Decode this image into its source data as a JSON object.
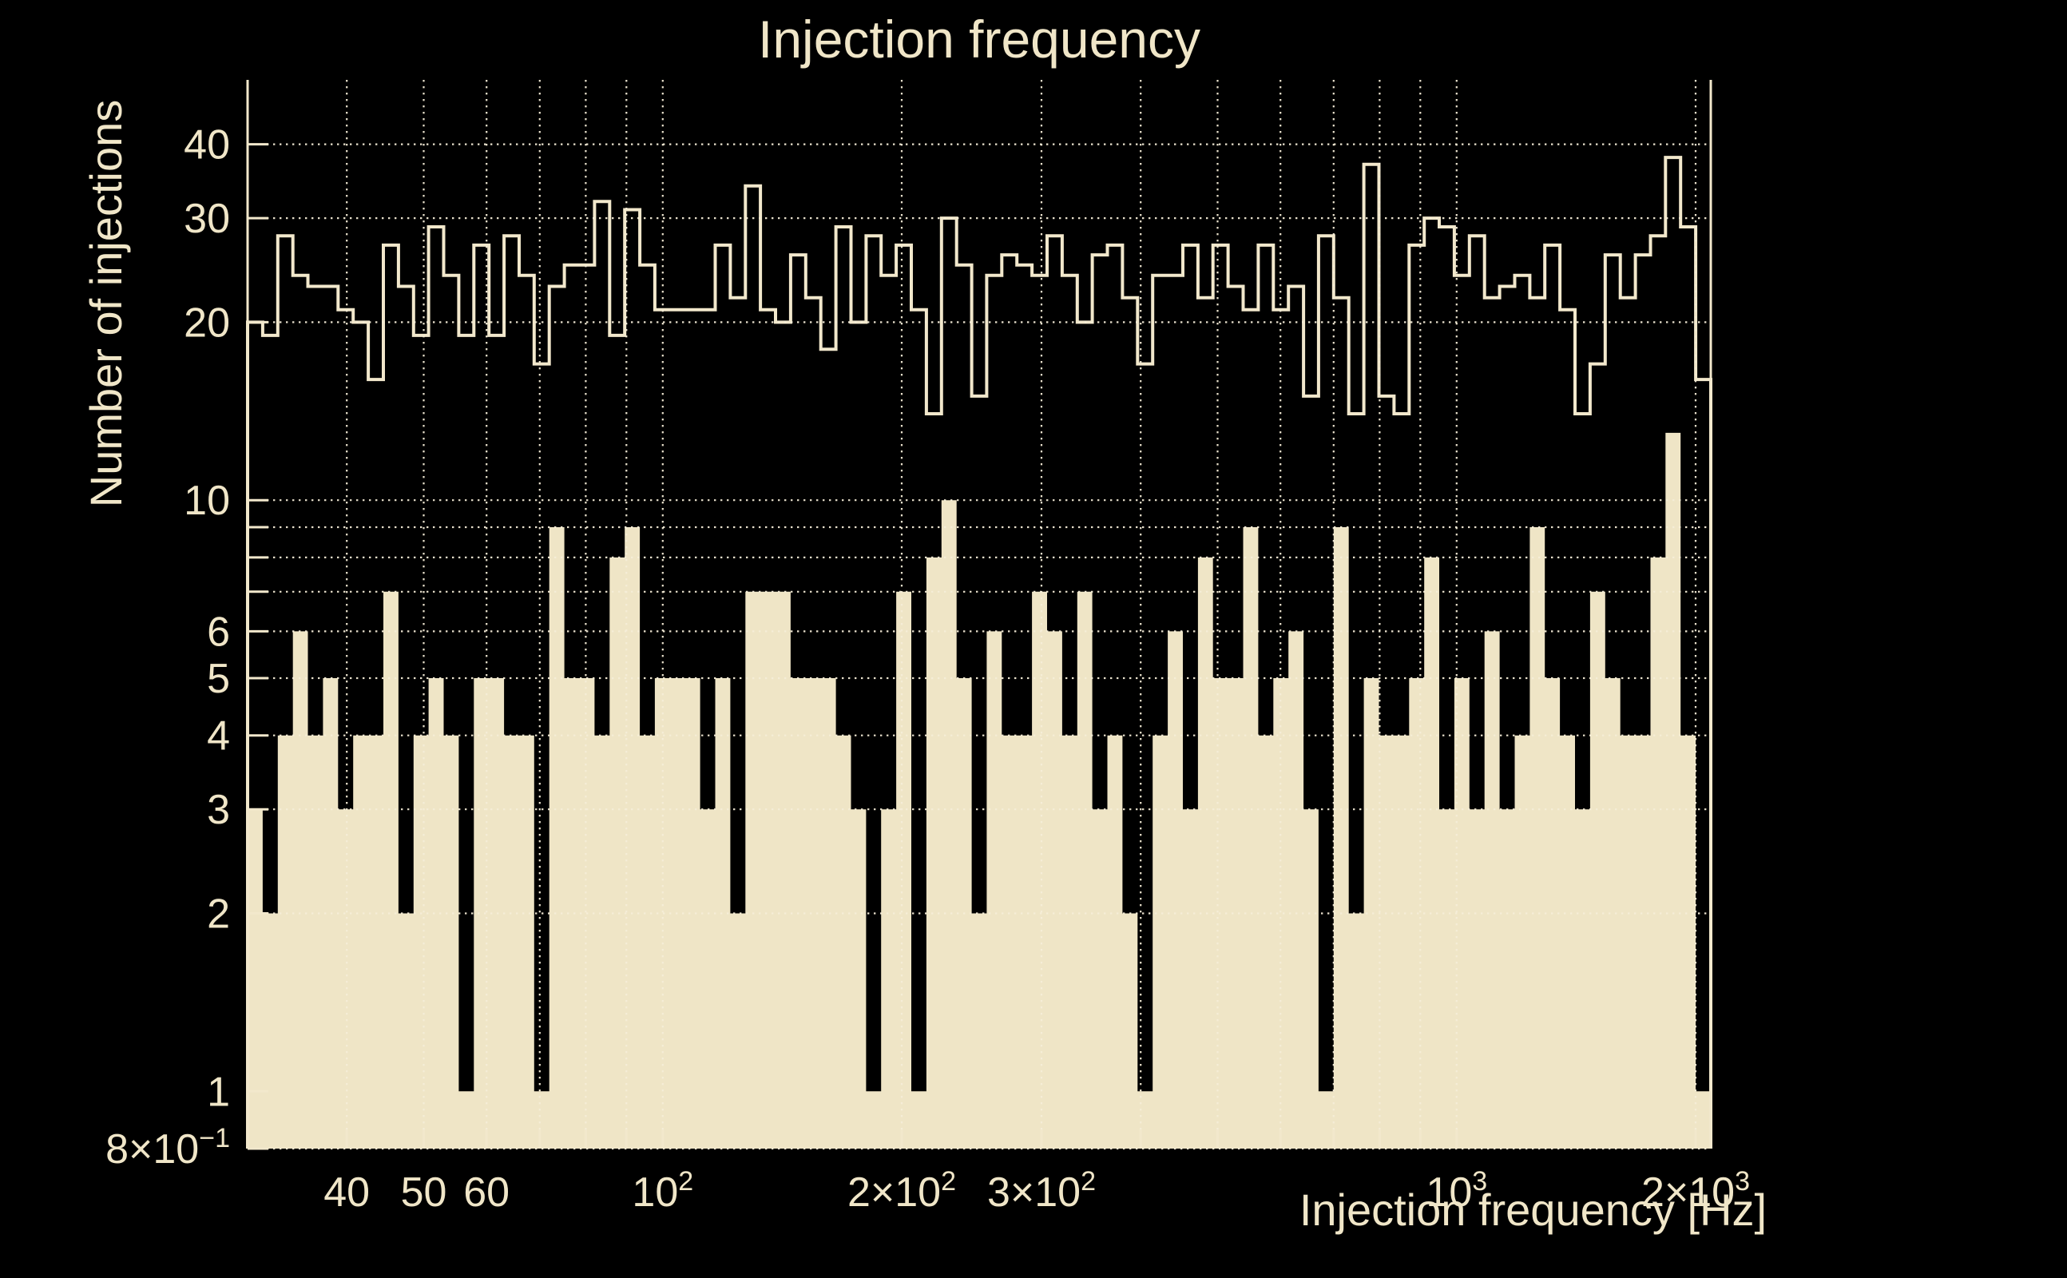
{
  "title": "Injection frequency",
  "y_axis_title": "Number of injections",
  "x_axis_title": "Injection frequency [Hz]",
  "colors": {
    "background": "#000000",
    "fill": "#efe5c6",
    "line": "#f2e8cc",
    "grid": "#f6eed8",
    "text": "#f0e6c8"
  },
  "chart_data": {
    "type": "bar",
    "title": "Injection frequency",
    "xlabel": "Injection frequency [Hz]",
    "ylabel": "Number of injections",
    "xscale": "log",
    "yscale": "log",
    "xlim": [
      30,
      2090
    ],
    "ylim": [
      0.8,
      51.4
    ],
    "grid": true,
    "n_bins": 97,
    "bin_edges_rule": "97 log-uniform bins from 30 Hz to 2090 Hz",
    "x_gridlines": [
      40,
      50,
      60,
      70,
      80,
      90,
      100,
      200,
      300,
      400,
      500,
      600,
      700,
      800,
      900,
      1000,
      2000
    ],
    "y_gridlines": [
      0.8,
      2,
      3,
      4,
      5,
      6,
      7,
      8,
      9,
      10,
      20,
      30,
      40
    ],
    "x_ticks": [
      {
        "v": 40,
        "base": "40",
        "sup": ""
      },
      {
        "v": 50,
        "base": "50",
        "sup": ""
      },
      {
        "v": 60,
        "base": "60",
        "sup": ""
      },
      {
        "v": 100,
        "base": "10",
        "sup": "2"
      },
      {
        "v": 200,
        "base": "2×10",
        "sup": "2"
      },
      {
        "v": 300,
        "base": "3×10",
        "sup": "2"
      },
      {
        "v": 1000,
        "base": "10",
        "sup": "3"
      },
      {
        "v": 2000,
        "base": "2×10",
        "sup": "3"
      }
    ],
    "y_ticks": [
      {
        "v": 0.8,
        "base": "8×10",
        "sup": "−1"
      },
      {
        "v": 1,
        "base": "1",
        "sup": ""
      },
      {
        "v": 2,
        "base": "2",
        "sup": ""
      },
      {
        "v": 3,
        "base": "3",
        "sup": ""
      },
      {
        "v": 4,
        "base": "4",
        "sup": ""
      },
      {
        "v": 5,
        "base": "5",
        "sup": ""
      },
      {
        "v": 6,
        "base": "6",
        "sup": ""
      },
      {
        "v": 10,
        "base": "10",
        "sup": ""
      },
      {
        "v": 20,
        "base": "20",
        "sup": ""
      },
      {
        "v": 30,
        "base": "30",
        "sup": ""
      },
      {
        "v": 40,
        "base": "40",
        "sup": ""
      }
    ],
    "series": [
      {
        "name": "injections-outline",
        "style": "step-outline",
        "values": [
          20,
          19,
          28,
          24,
          23,
          23,
          21,
          20,
          16,
          27,
          23,
          19,
          29,
          24,
          19,
          27,
          19,
          28,
          24,
          17,
          23,
          25,
          25,
          32,
          19,
          31,
          25,
          21,
          21,
          21,
          21,
          27,
          22,
          34,
          21,
          20,
          26,
          22,
          18,
          29,
          20,
          28,
          24,
          27,
          21,
          14,
          30,
          25,
          15,
          24,
          26,
          25,
          24,
          28,
          24,
          20,
          26,
          27,
          22,
          17,
          24,
          24,
          27,
          22,
          27,
          23,
          21,
          27,
          21,
          23,
          15,
          28,
          22,
          14,
          37,
          15,
          14,
          27,
          30,
          29,
          24,
          28,
          22,
          23,
          24,
          22,
          27,
          21,
          14,
          17,
          26,
          22,
          26,
          28,
          38,
          29,
          16
        ]
      },
      {
        "name": "injections-filled",
        "style": "filled",
        "values": [
          3,
          2,
          4,
          6,
          4,
          5,
          3,
          4,
          4,
          7,
          2,
          4,
          5,
          4,
          1,
          5,
          5,
          4,
          4,
          1,
          9,
          5,
          5,
          4,
          8,
          9,
          4,
          5,
          5,
          5,
          3,
          5,
          2,
          7,
          7,
          7,
          5,
          5,
          5,
          4,
          3,
          1,
          3,
          7,
          1,
          8,
          10,
          5,
          2,
          6,
          4,
          4,
          7,
          6,
          4,
          7,
          3,
          4,
          2,
          1,
          4,
          6,
          3,
          8,
          5,
          5,
          9,
          4,
          5,
          6,
          3,
          1,
          9,
          2,
          5,
          4,
          4,
          5,
          8,
          3,
          5,
          3,
          6,
          3,
          4,
          9,
          5,
          4,
          3,
          7,
          5,
          4,
          4,
          8,
          13,
          4,
          1
        ]
      }
    ]
  }
}
